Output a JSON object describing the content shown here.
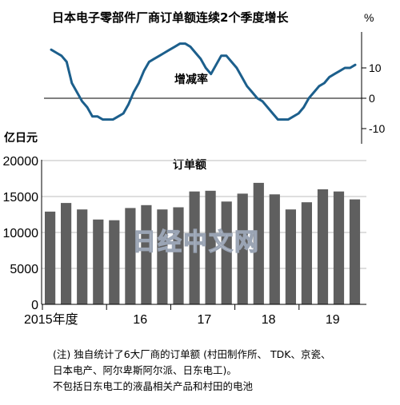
{
  "chart_data": [
    {
      "type": "line",
      "title": "日本电子零部件厂商订单额连续2个季度增长",
      "annotation": "增减率",
      "unit_label": "%",
      "ylim": [
        -12,
        22
      ],
      "yticks": [
        "10",
        "0",
        "-10"
      ],
      "ytick_values": [
        10,
        0,
        -10
      ],
      "color": "#1c5f8c",
      "x": [
        "2015-01",
        "2015-02",
        "2015-03",
        "2015-04",
        "2015-05",
        "2015-06",
        "2015-07",
        "2015-08",
        "2015-09",
        "2015-10",
        "2015-11",
        "2015-12",
        "2016-01",
        "2016-02",
        "2016-03",
        "2016-04",
        "2016-05",
        "2016-06",
        "2016-07",
        "2016-08",
        "2016-09",
        "2016-10",
        "2016-11",
        "2016-12",
        "2017-01",
        "2017-02",
        "2017-03",
        "2017-04",
        "2017-05",
        "2017-06",
        "2017-07",
        "2017-08",
        "2017-09",
        "2017-10",
        "2017-11",
        "2017-12",
        "2018-01",
        "2018-02",
        "2018-03",
        "2018-04",
        "2018-05",
        "2018-06",
        "2018-07",
        "2018-08",
        "2018-09",
        "2018-10",
        "2018-11",
        "2018-12",
        "2019-01",
        "2019-02",
        "2019-03",
        "2019-04",
        "2019-05",
        "2019-06",
        "2019-07",
        "2019-08",
        "2019-09",
        "2019-10",
        "2019-11",
        "2019-12"
      ],
      "values": [
        16,
        15,
        14,
        12,
        5,
        2,
        -1,
        -3,
        -6,
        -6,
        -7,
        -7,
        -7,
        -6,
        -5,
        -2,
        2,
        5,
        9,
        12,
        13,
        14,
        15,
        16,
        17,
        18,
        18,
        17,
        15,
        13,
        10,
        8,
        11,
        14,
        14,
        12,
        10,
        7,
        4,
        2,
        0,
        -1,
        -3,
        -5,
        -7,
        -7,
        -7,
        -6,
        -5,
        -3,
        0,
        2,
        4,
        5,
        7,
        8,
        9,
        10,
        10,
        11
      ]
    },
    {
      "type": "bar",
      "title": "订单额",
      "ylabel": "亿日元",
      "ylim": [
        0,
        20000
      ],
      "yticks": [
        "20000",
        "15000",
        "10000",
        "5000",
        "0"
      ],
      "ytick_values": [
        20000,
        15000,
        10000,
        5000,
        0
      ],
      "xtick_labels": [
        "2015年度",
        "16",
        "17",
        "18",
        "19"
      ],
      "xtick_index": [
        0,
        4,
        8,
        12,
        16
      ],
      "color": "#5f5f5f",
      "categories": [
        "2015Q1",
        "2015Q2",
        "2015Q3",
        "2015Q4",
        "2016Q1",
        "2016Q2",
        "2016Q3",
        "2016Q4",
        "2017Q1",
        "2017Q2",
        "2017Q3",
        "2017Q4",
        "2018Q1",
        "2018Q2",
        "2018Q3",
        "2018Q4",
        "2019Q1",
        "2019Q2",
        "2019Q3",
        "2019Q4"
      ],
      "values": [
        12900,
        14100,
        13200,
        11800,
        11700,
        13400,
        13800,
        13200,
        13500,
        15700,
        15800,
        14300,
        15400,
        16900,
        15300,
        13200,
        14200,
        16000,
        15700,
        14600
      ]
    }
  ],
  "watermark": "日经中文网",
  "note": [
    "(注) 独自统计了6大厂商的订单额 (村田制作所、 TDK、京瓷、",
    "日本电产、阿尔卑斯阿尔派、日东电工)。",
    "不包括日东电工的液晶相关产品和村田的电池"
  ]
}
